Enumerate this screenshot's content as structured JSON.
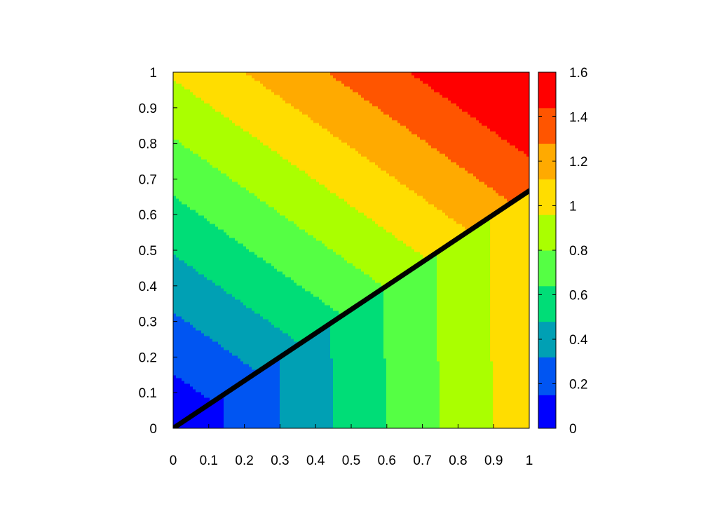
{
  "chart_data": {
    "type": "heatmap",
    "title": "",
    "xlabel": "",
    "ylabel": "",
    "xlim": [
      0,
      1
    ],
    "ylim": [
      0,
      1
    ],
    "x_ticks": [
      "0",
      "0.1",
      "0.2",
      "0.3",
      "0.4",
      "0.5",
      "0.6",
      "0.7",
      "0.8",
      "0.9",
      "1"
    ],
    "y_ticks": [
      "0",
      "0.1",
      "0.2",
      "0.3",
      "0.4",
      "0.5",
      "0.6",
      "0.7",
      "0.8",
      "0.9",
      "1"
    ],
    "colorbar": {
      "range": [
        0,
        1.6
      ],
      "ticks": [
        "0",
        "0.2",
        "0.4",
        "0.6",
        "0.8",
        "1",
        "1.2",
        "1.4",
        "1.6"
      ],
      "levels": [
        {
          "from": 0.0,
          "to": 0.15,
          "color": "#0000ff"
        },
        {
          "from": 0.15,
          "to": 0.32,
          "color": "#0055f2"
        },
        {
          "from": 0.32,
          "to": 0.48,
          "color": "#00a0b4"
        },
        {
          "from": 0.48,
          "to": 0.64,
          "color": "#00dd77"
        },
        {
          "from": 0.64,
          "to": 0.8,
          "color": "#55ff44"
        },
        {
          "from": 0.8,
          "to": 0.96,
          "color": "#aaff00"
        },
        {
          "from": 0.96,
          "to": 1.12,
          "color": "#ffdd00"
        },
        {
          "from": 1.12,
          "to": 1.28,
          "color": "#ffaa00"
        },
        {
          "from": 1.28,
          "to": 1.44,
          "color": "#ff5500"
        },
        {
          "from": 1.44,
          "to": 1.6,
          "color": "#ff0000"
        }
      ]
    },
    "line": {
      "color": "#000000",
      "points": [
        [
          0,
          0
        ],
        [
          1,
          0.667
        ]
      ]
    },
    "grid": false,
    "legend": "none"
  }
}
